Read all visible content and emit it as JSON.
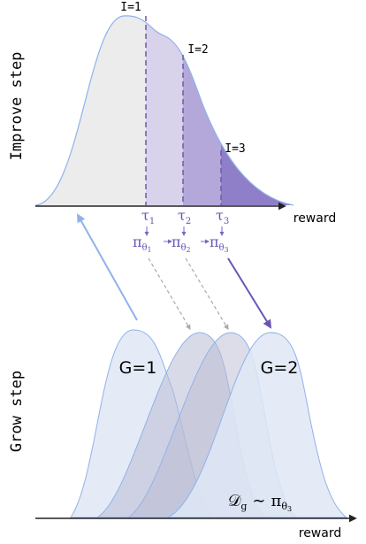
{
  "improve": {
    "label": "Improve step",
    "thresholds": [
      "I=1",
      "I=2",
      "I=3"
    ],
    "axis_label": "reward",
    "taus": [
      {
        "symbol": "τ",
        "sub": "1"
      },
      {
        "symbol": "τ",
        "sub": "2"
      },
      {
        "symbol": "τ",
        "sub": "3"
      }
    ],
    "policies": [
      {
        "symbol": "π",
        "sub": "θ",
        "subsub": "1"
      },
      {
        "symbol": "π",
        "sub": "θ",
        "subsub": "2"
      },
      {
        "symbol": "π",
        "sub": "θ",
        "subsub": "3"
      }
    ]
  },
  "grow": {
    "label": "Grow step",
    "g1": "G=1",
    "g2": "G=2",
    "axis_label": "reward",
    "dataset": {
      "symbol": "𝒟",
      "sub": "g",
      "sim": "∼",
      "pi": "π",
      "pisub": "θ",
      "pisubsub": "3"
    }
  }
}
